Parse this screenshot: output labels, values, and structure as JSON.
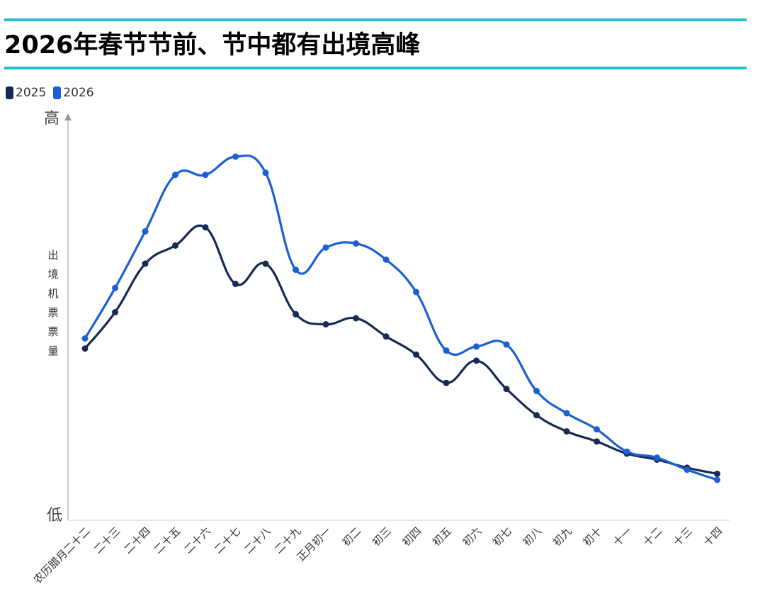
{
  "title": "2026年春节节前、节中都有出境高峰",
  "colors": {
    "accent_rule": "#1fc2cc",
    "series_2025": "#172a54",
    "series_2026": "#1b5fd6"
  },
  "chart_data": {
    "type": "line",
    "title": "2026年春节节前、节中都有出境高峰",
    "ylabel": "出境机票票量",
    "y_axis_top_label": "高",
    "y_axis_bottom_label": "低",
    "ylim": [
      0,
      100
    ],
    "grid": false,
    "legend": "top-left",
    "categories": [
      "农历腊月二十二",
      "二十三",
      "二十四",
      "二十五",
      "二十六",
      "二十七",
      "二十八",
      "二十九",
      "正月初一",
      "初二",
      "初三",
      "初四",
      "初五",
      "初六",
      "初七",
      "初八",
      "初九",
      "初十",
      "十一",
      "十二",
      "十三",
      "十四"
    ],
    "series": [
      {
        "name": "2025",
        "color": "#172a54",
        "values": [
          42.5,
          51.5,
          63.5,
          68.0,
          72.5,
          58.5,
          63.5,
          51.0,
          48.5,
          50.0,
          45.5,
          41.0,
          34.0,
          39.5,
          32.5,
          26.0,
          22.0,
          19.5,
          16.5,
          15.0,
          13.0,
          11.5
        ]
      },
      {
        "name": "2026",
        "color": "#1b5fd6",
        "values": [
          45.0,
          57.5,
          71.5,
          85.5,
          85.5,
          90.0,
          86.0,
          62.0,
          67.5,
          68.5,
          64.5,
          56.5,
          42.0,
          43.0,
          43.5,
          32.0,
          26.5,
          22.5,
          17.0,
          15.5,
          12.5,
          10.0
        ]
      }
    ]
  }
}
